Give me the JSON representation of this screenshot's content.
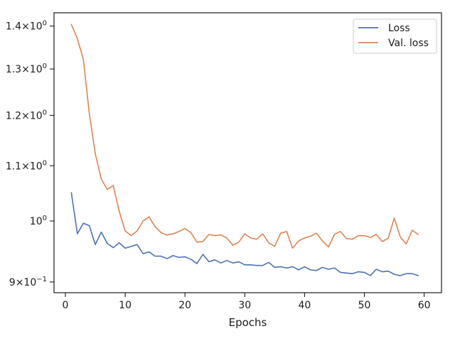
{
  "chart_data": {
    "type": "line",
    "xlabel": "Epochs",
    "ylabel": "",
    "title": "",
    "yscale": "log",
    "xlim": [
      -1.9,
      62.9
    ],
    "ylim": [
      0.8835,
      1.4325
    ],
    "grid": false,
    "legend_position": "top-right",
    "x_ticks": [
      0,
      10,
      20,
      30,
      40,
      50,
      60
    ],
    "x_tick_labels": [
      "0",
      "10",
      "20",
      "30",
      "40",
      "50",
      "60"
    ],
    "y_ticks": [
      0.9,
      1.0,
      1.1,
      1.2,
      1.3,
      1.4
    ],
    "y_tick_labels": [
      {
        "m": "9",
        "e": "−1"
      },
      {
        "m": "",
        "e": "0"
      },
      {
        "m": "1.1",
        "e": "0"
      },
      {
        "m": "1.2",
        "e": "0"
      },
      {
        "m": "1.3",
        "e": "0"
      },
      {
        "m": "1.4",
        "e": "0"
      }
    ],
    "y_tick_prefix": "10",
    "y_tick_times": "×",
    "x": [
      1,
      2,
      3,
      4,
      5,
      6,
      7,
      8,
      9,
      10,
      11,
      12,
      13,
      14,
      15,
      16,
      17,
      18,
      19,
      20,
      21,
      22,
      23,
      24,
      25,
      26,
      27,
      28,
      29,
      30,
      31,
      32,
      33,
      34,
      35,
      36,
      37,
      38,
      39,
      40,
      41,
      42,
      43,
      44,
      45,
      46,
      47,
      48,
      49,
      50,
      51,
      52,
      53,
      54,
      55,
      56,
      57,
      58,
      59
    ],
    "series": [
      {
        "name": "Loss",
        "color": "#4c72b0",
        "values": [
          1.05,
          0.978,
          0.996,
          0.992,
          0.96,
          0.981,
          0.962,
          0.955,
          0.963,
          0.954,
          0.957,
          0.96,
          0.945,
          0.948,
          0.941,
          0.941,
          0.937,
          0.942,
          0.939,
          0.94,
          0.936,
          0.929,
          0.944,
          0.932,
          0.935,
          0.93,
          0.934,
          0.93,
          0.932,
          0.927,
          0.927,
          0.926,
          0.926,
          0.931,
          0.923,
          0.924,
          0.922,
          0.924,
          0.919,
          0.924,
          0.919,
          0.918,
          0.923,
          0.92,
          0.922,
          0.915,
          0.914,
          0.913,
          0.916,
          0.915,
          0.91,
          0.92,
          0.916,
          0.917,
          0.912,
          0.91,
          0.913,
          0.913,
          0.91
        ]
      },
      {
        "name": "Val. loss",
        "color": "#dd8452",
        "values": [
          1.404,
          1.37,
          1.322,
          1.204,
          1.123,
          1.075,
          1.056,
          1.063,
          1.017,
          0.983,
          0.975,
          0.983,
          1.0,
          1.007,
          0.99,
          0.98,
          0.976,
          0.978,
          0.982,
          0.987,
          0.98,
          0.964,
          0.965,
          0.977,
          0.975,
          0.976,
          0.971,
          0.959,
          0.964,
          0.978,
          0.971,
          0.969,
          0.978,
          0.963,
          0.957,
          0.979,
          0.982,
          0.954,
          0.966,
          0.971,
          0.974,
          0.979,
          0.966,
          0.956,
          0.977,
          0.982,
          0.97,
          0.969,
          0.975,
          0.975,
          0.972,
          0.977,
          0.965,
          0.971,
          1.005,
          0.973,
          0.961,
          0.984,
          0.977
        ]
      }
    ]
  }
}
